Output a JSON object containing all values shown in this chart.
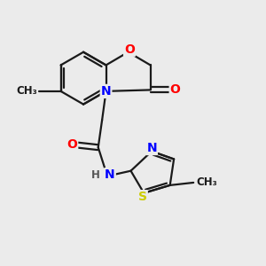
{
  "bg_color": "#ebebeb",
  "bond_color": "#1a1a1a",
  "bond_width": 1.6,
  "atom_colors": {
    "O": "#ff0000",
    "N": "#0000ff",
    "S": "#cccc00",
    "C": "#1a1a1a",
    "H": "#555555"
  },
  "font_size": 9.5,
  "fig_size": [
    3.0,
    3.0
  ],
  "dpi": 100
}
